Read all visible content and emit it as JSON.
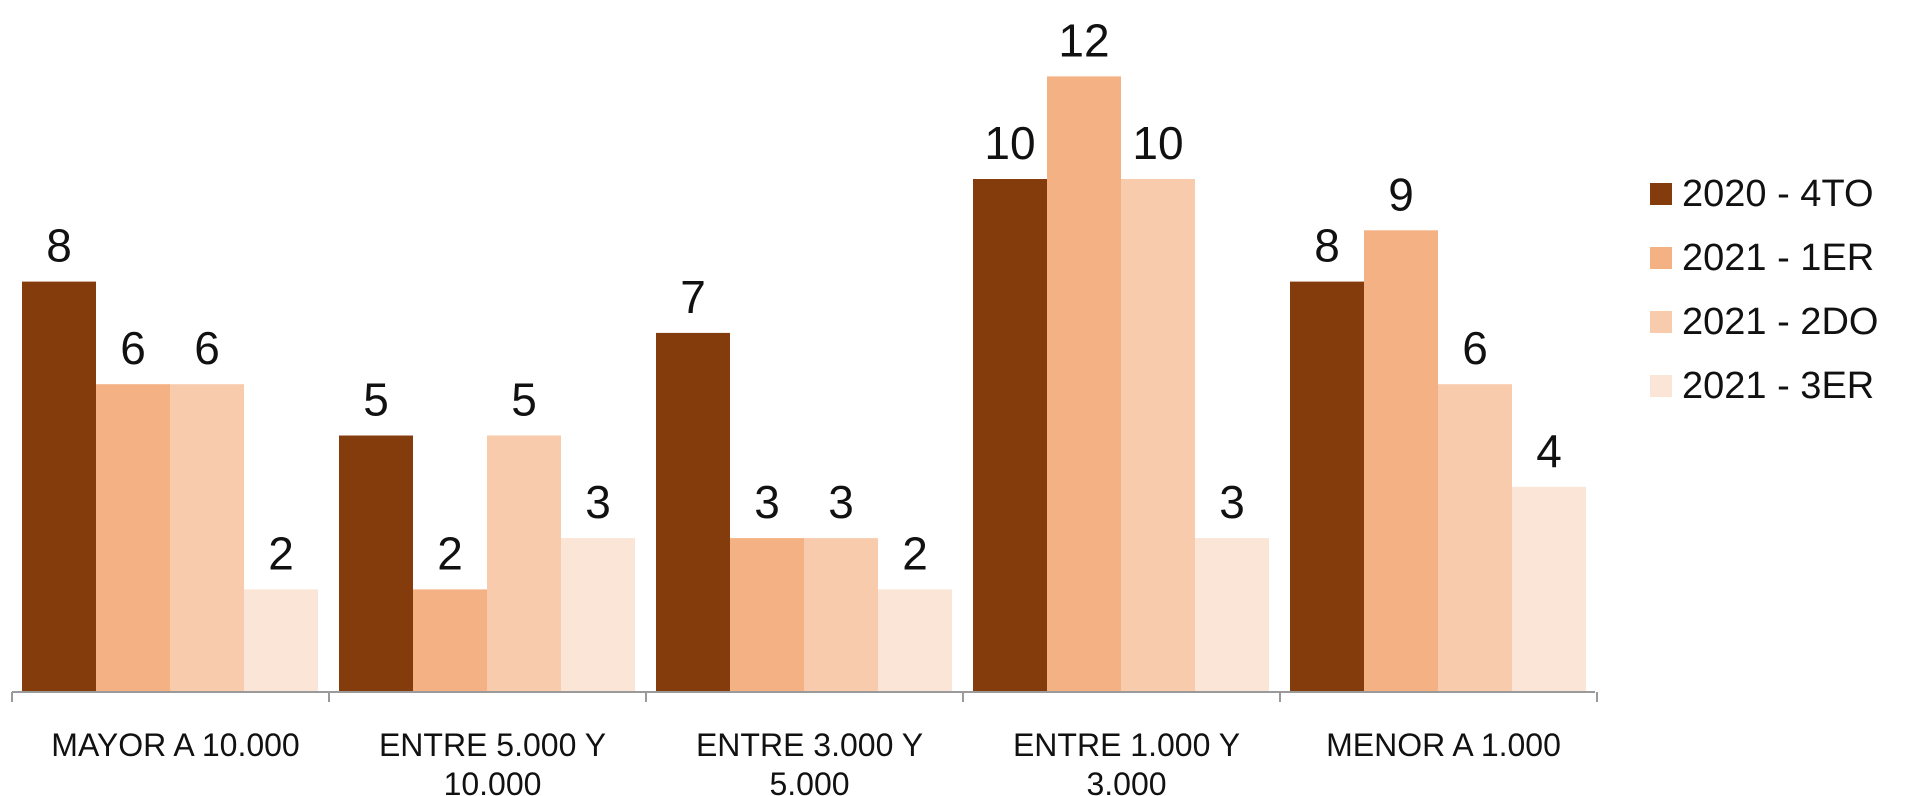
{
  "chart_data": {
    "type": "bar",
    "categories": [
      [
        "MAYOR A 10.000"
      ],
      [
        "ENTRE 5.000 Y",
        "10.000"
      ],
      [
        "ENTRE 3.000 Y",
        "5.000"
      ],
      [
        "ENTRE 1.000 Y",
        "3.000"
      ],
      [
        "MENOR A 1.000"
      ]
    ],
    "series": [
      {
        "name": "2020 - 4TO",
        "color": "#843C0C",
        "values": [
          8,
          5,
          7,
          10,
          8
        ]
      },
      {
        "name": "2021 - 1ER",
        "color": "#F4B183",
        "values": [
          6,
          2,
          3,
          12,
          9
        ]
      },
      {
        "name": "2021 - 2DO",
        "color": "#F8CBAD",
        "values": [
          6,
          5,
          3,
          10,
          6
        ]
      },
      {
        "name": "2021 - 3ER",
        "color": "#FBE5D6",
        "values": [
          2,
          3,
          2,
          3,
          4
        ]
      }
    ],
    "ylim": [
      0,
      12
    ],
    "grid": false,
    "legend_position": "right",
    "data_labels": true
  }
}
